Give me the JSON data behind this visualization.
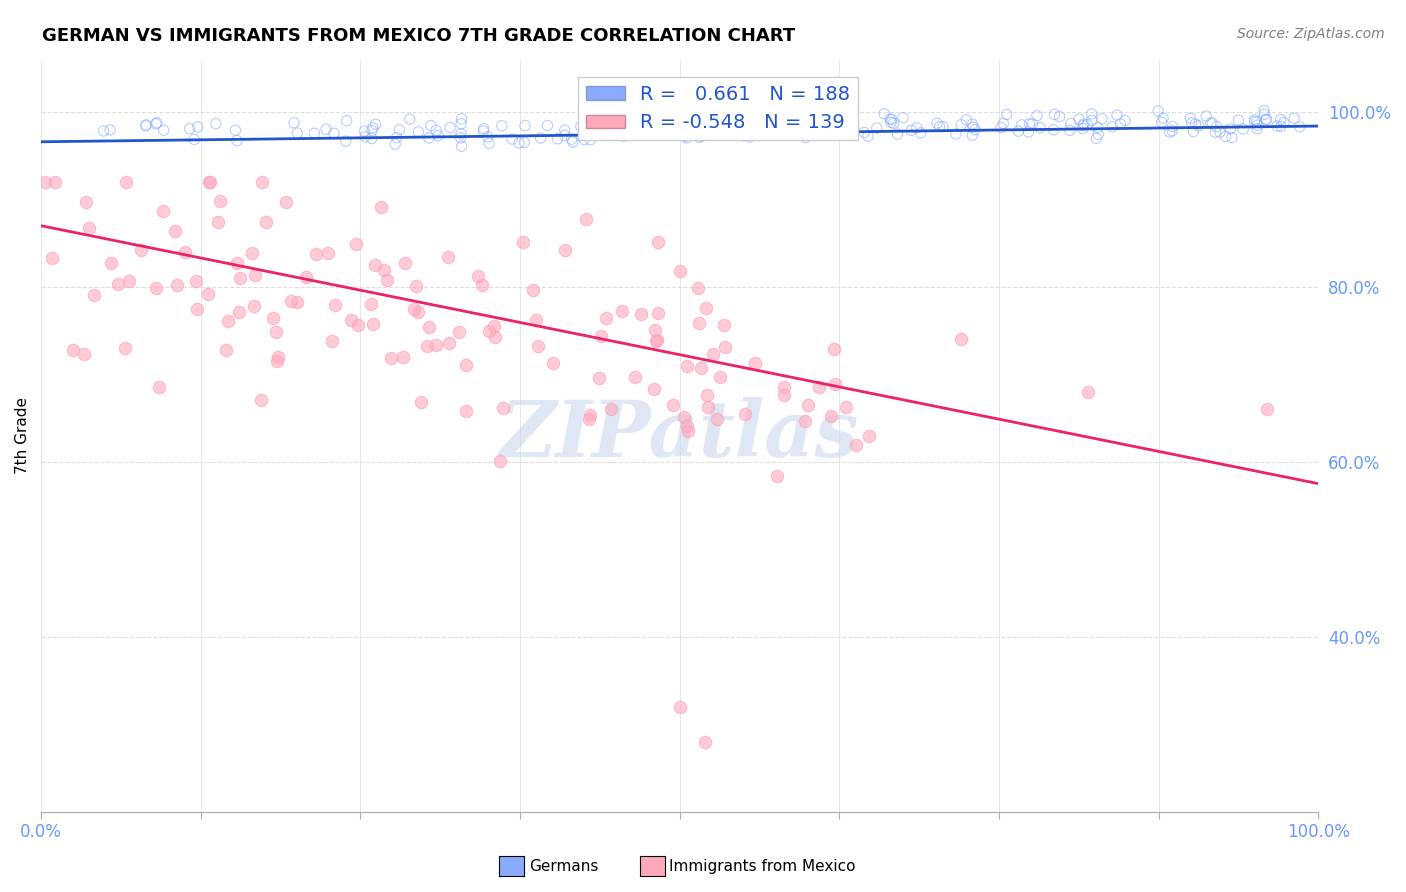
{
  "title": "GERMAN VS IMMIGRANTS FROM MEXICO 7TH GRADE CORRELATION CHART",
  "source": "Source: ZipAtlas.com",
  "ylabel": "7th Grade",
  "blue_R": 0.661,
  "blue_N": 188,
  "pink_R": -0.548,
  "pink_N": 139,
  "blue_color": "#88aaff",
  "pink_color": "#ff99bb",
  "blue_line_color": "#2255cc",
  "pink_line_color": "#ee2266",
  "blue_scatter_color": "#aabbff",
  "pink_scatter_color": "#ffaabb",
  "watermark": "ZIPatlas",
  "legend_labels": [
    "Germans",
    "Immigrants from Mexico"
  ],
  "background_color": "#ffffff",
  "grid_color": "#dddddd",
  "tick_color": "#6699ff",
  "title_fontsize": 13,
  "source_fontsize": 10,
  "legend_fontsize": 14,
  "ytick_positions": [
    0.4,
    0.6,
    0.8,
    1.0
  ],
  "ytick_labels": [
    "40.0%",
    "60.0%",
    "80.0%",
    "100.0%"
  ],
  "xlim": [
    0.0,
    1.0
  ],
  "ylim": [
    0.2,
    1.06
  ]
}
